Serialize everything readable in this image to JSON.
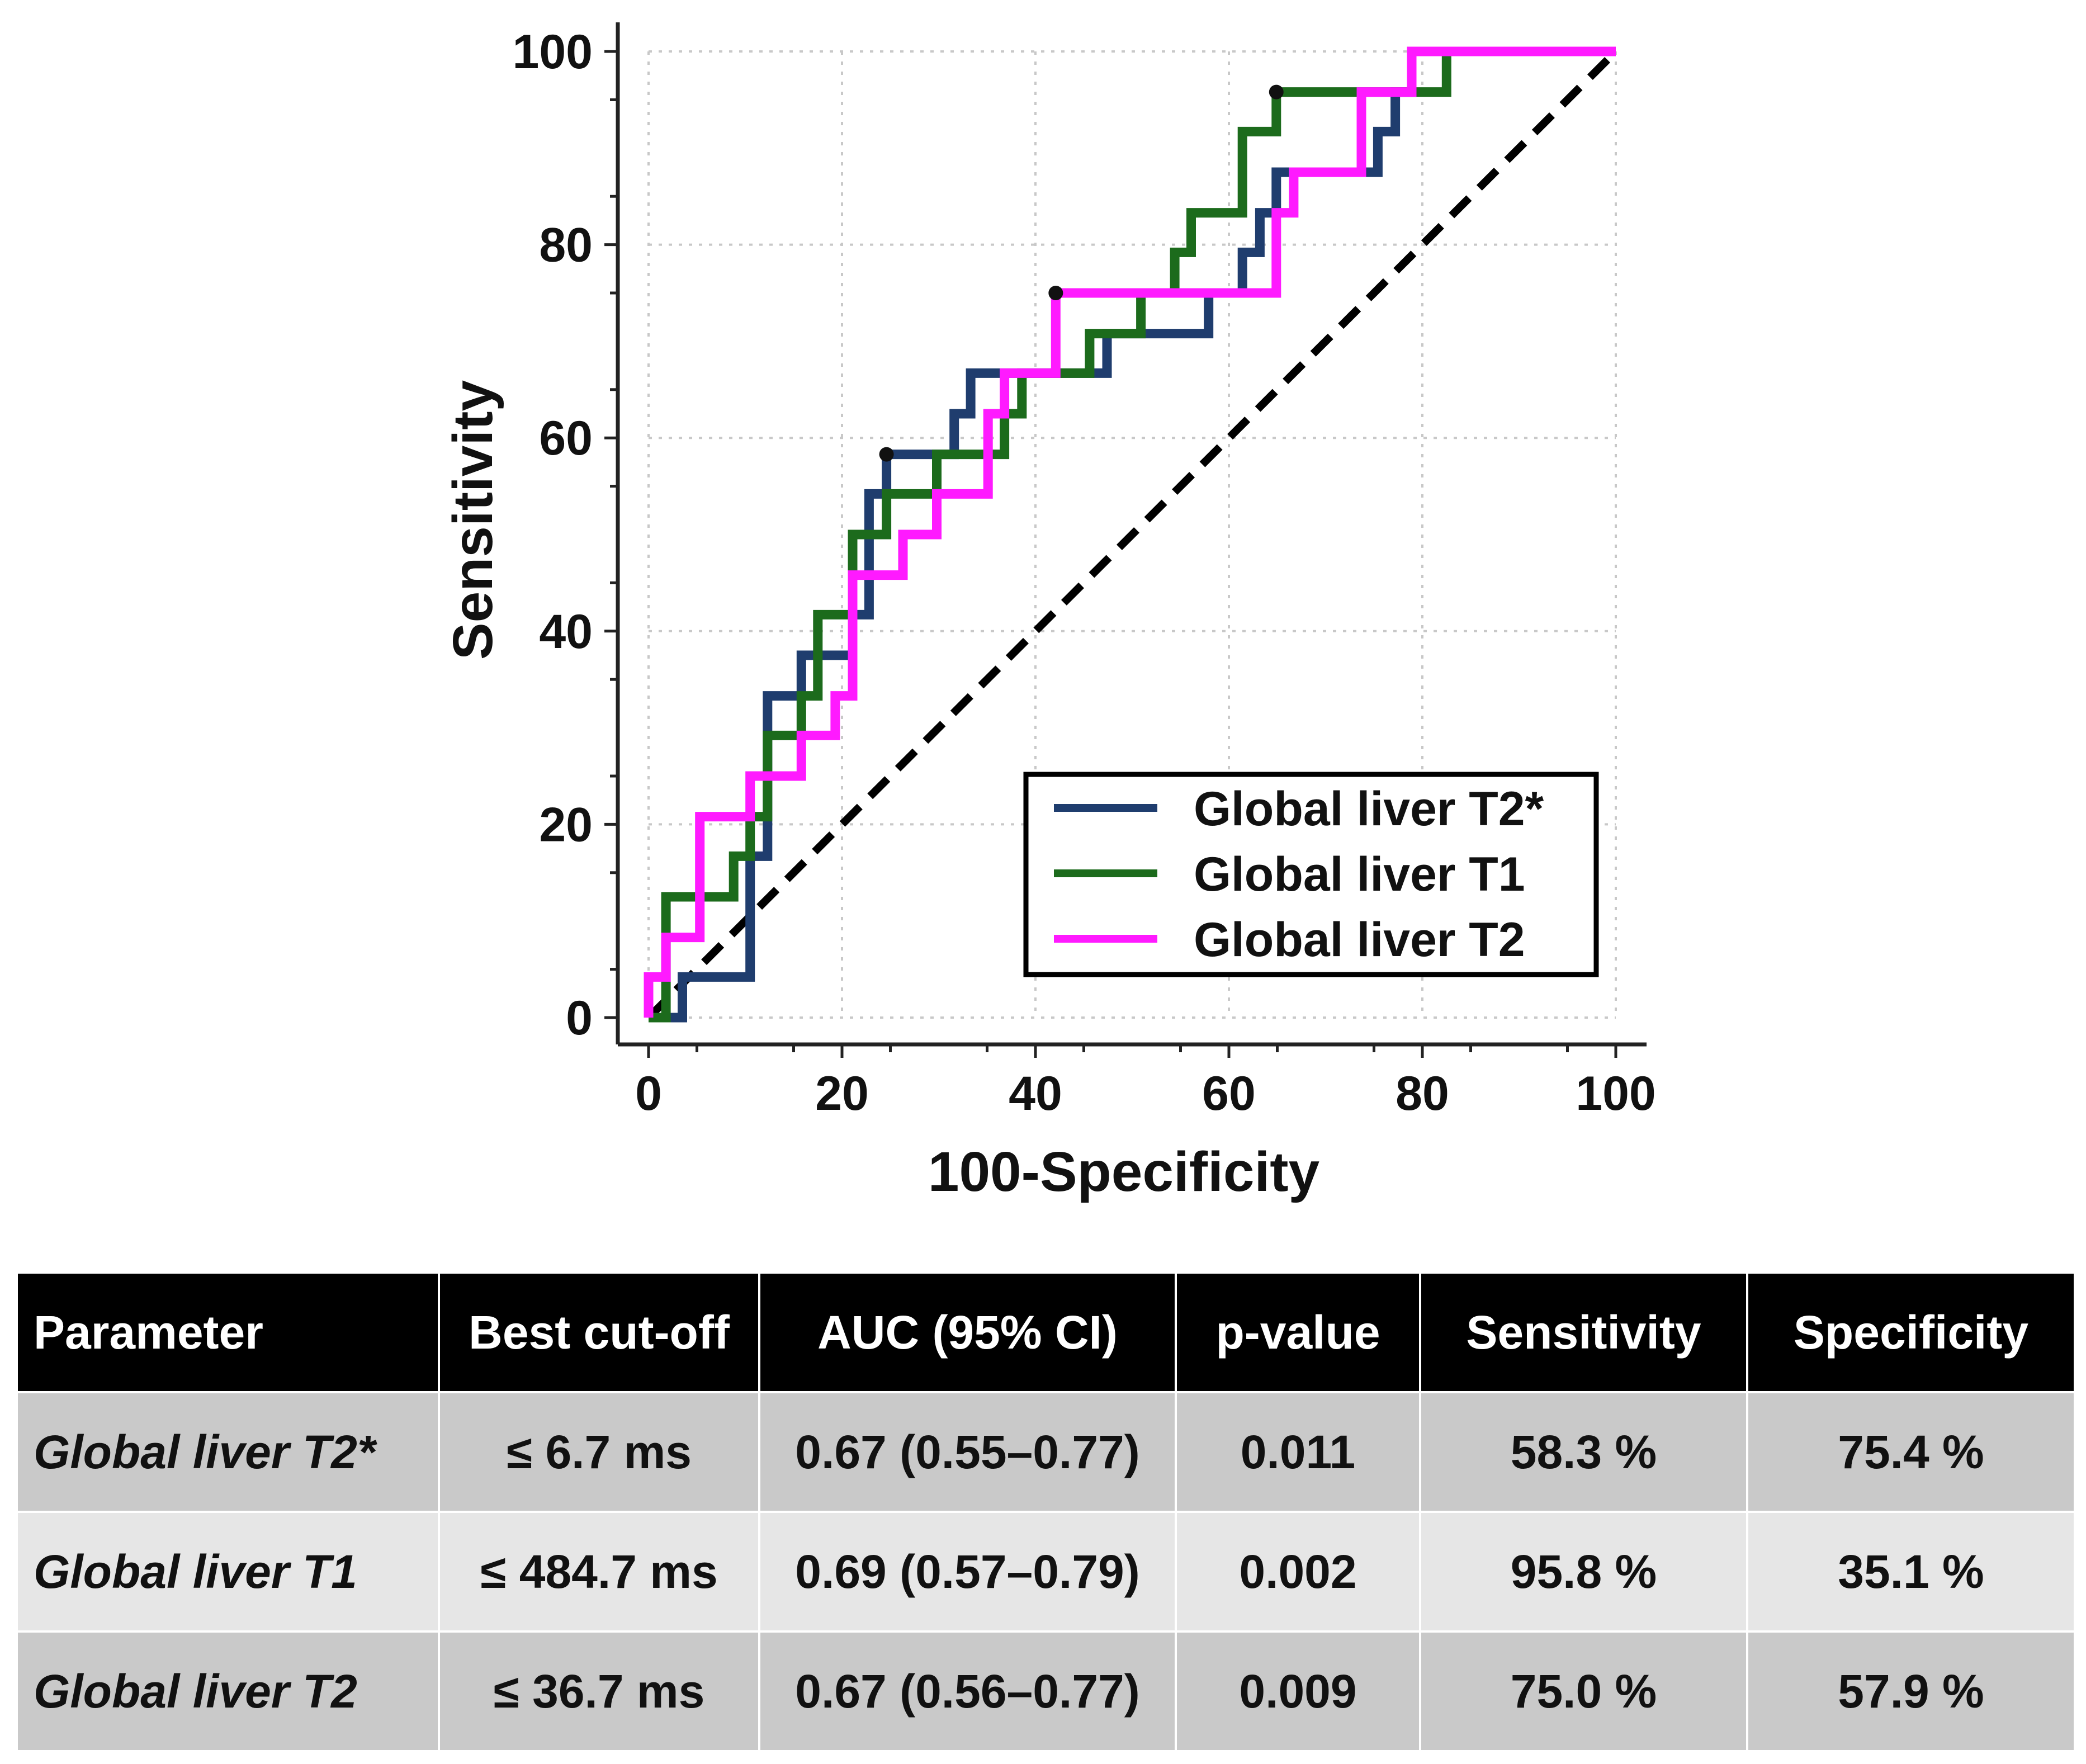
{
  "chart_data": {
    "type": "line",
    "title": "",
    "xlabel": "100-Specificity",
    "ylabel": "Sensitivity",
    "xlim": [
      0,
      100
    ],
    "ylim": [
      0,
      100
    ],
    "xticks": [
      0,
      20,
      40,
      60,
      80,
      100
    ],
    "yticks": [
      0,
      20,
      40,
      60,
      80,
      100
    ],
    "grid": true,
    "legend_position": "bottom-right",
    "series": [
      {
        "name": "Global liver T2*",
        "color": "#1f3d6e",
        "cutoff_point": [
          24.6,
          58.3
        ],
        "x": [
          0,
          3.5,
          3.5,
          5.3,
          5.3,
          10.5,
          10.5,
          12.3,
          12.3,
          15.8,
          15.8,
          17.5,
          17.5,
          21.1,
          21.1,
          22.8,
          22.8,
          24.6,
          24.6,
          31.6,
          31.6,
          33.3,
          33.3,
          45.6,
          45.6,
          47.4,
          47.4,
          57.9,
          57.9,
          61.4,
          61.4,
          63.2,
          63.2,
          64.9,
          64.9,
          75.4,
          75.4,
          77.2,
          77.2,
          78.9,
          78.9,
          100
        ],
        "y": [
          0,
          0,
          4.2,
          4.2,
          4.2,
          4.2,
          16.7,
          16.7,
          33.3,
          33.3,
          37.5,
          37.5,
          37.5,
          37.5,
          41.7,
          41.7,
          54.2,
          54.2,
          58.3,
          58.3,
          62.5,
          62.5,
          66.7,
          66.7,
          66.7,
          66.7,
          70.8,
          70.8,
          75.0,
          75.0,
          79.2,
          79.2,
          83.3,
          83.3,
          87.5,
          87.5,
          91.7,
          91.7,
          95.8,
          95.8,
          100,
          100
        ]
      },
      {
        "name": "Global liver T1",
        "color": "#1c6b1c",
        "cutoff_point": [
          64.9,
          95.8
        ],
        "x": [
          0,
          1.8,
          1.8,
          3.5,
          3.5,
          8.8,
          8.8,
          10.5,
          10.5,
          12.3,
          12.3,
          15.8,
          15.8,
          17.5,
          17.5,
          21.1,
          21.1,
          24.6,
          24.6,
          29.8,
          29.8,
          36.8,
          36.8,
          38.6,
          38.6,
          43.9,
          43.9,
          45.6,
          45.6,
          50.9,
          50.9,
          54.4,
          54.4,
          56.1,
          56.1,
          61.4,
          61.4,
          64.9,
          64.9,
          78.9,
          78.9,
          82.5,
          82.5,
          100
        ],
        "y": [
          0,
          0,
          12.5,
          12.5,
          12.5,
          12.5,
          16.7,
          16.7,
          20.8,
          20.8,
          29.2,
          29.2,
          33.3,
          33.3,
          41.7,
          41.7,
          50.0,
          50.0,
          54.2,
          54.2,
          58.3,
          58.3,
          62.5,
          62.5,
          66.7,
          66.7,
          66.7,
          66.7,
          70.8,
          70.8,
          75.0,
          75.0,
          79.2,
          79.2,
          83.3,
          83.3,
          91.7,
          91.7,
          95.8,
          95.8,
          95.8,
          95.8,
          100,
          100
        ]
      },
      {
        "name": "Global liver T2",
        "color": "#ff1aff",
        "cutoff_point": [
          42.1,
          75.0
        ],
        "x": [
          0,
          0,
          1.8,
          1.8,
          5.3,
          5.3,
          10.5,
          10.5,
          15.8,
          15.8,
          19.3,
          19.3,
          21.1,
          21.1,
          26.3,
          26.3,
          29.8,
          29.8,
          35.1,
          35.1,
          36.8,
          36.8,
          42.1,
          42.1,
          64.9,
          64.9,
          66.7,
          66.7,
          73.7,
          73.7,
          78.9,
          78.9,
          100
        ],
        "y": [
          0,
          4.2,
          4.2,
          8.3,
          8.3,
          20.8,
          20.8,
          25.0,
          25.0,
          29.2,
          29.2,
          33.3,
          33.3,
          45.8,
          45.8,
          50.0,
          50.0,
          54.2,
          54.2,
          62.5,
          62.5,
          66.7,
          66.7,
          75.0,
          75.0,
          83.3,
          83.3,
          87.5,
          87.5,
          95.8,
          95.8,
          100,
          100
        ]
      },
      {
        "name": "Reference line",
        "color": "#000000",
        "style": "dashed",
        "x": [
          0,
          100
        ],
        "y": [
          0,
          100
        ]
      }
    ],
    "legend": [
      "Global liver T2*",
      "Global liver T1",
      "Global liver T2"
    ]
  },
  "table": {
    "headers": [
      "Parameter",
      "Best cut-off",
      "AUC (95% CI)",
      "p-value",
      "Sensitivity",
      "Specificity"
    ],
    "rows": [
      [
        "Global liver T2*",
        "≤ 6.7 ms",
        "0.67 (0.55–0.77)",
        "0.011",
        "58.3 %",
        "75.4 %"
      ],
      [
        "Global liver T1",
        "≤ 484.7 ms",
        "0.69 (0.57–0.79)",
        "0.002",
        "95.8 %",
        "35.1 %"
      ],
      [
        "Global liver T2",
        "≤ 36.7  ms",
        "0.67 (0.56–0.77)",
        "0.009",
        "75.0 %",
        "57.9 %"
      ]
    ]
  }
}
